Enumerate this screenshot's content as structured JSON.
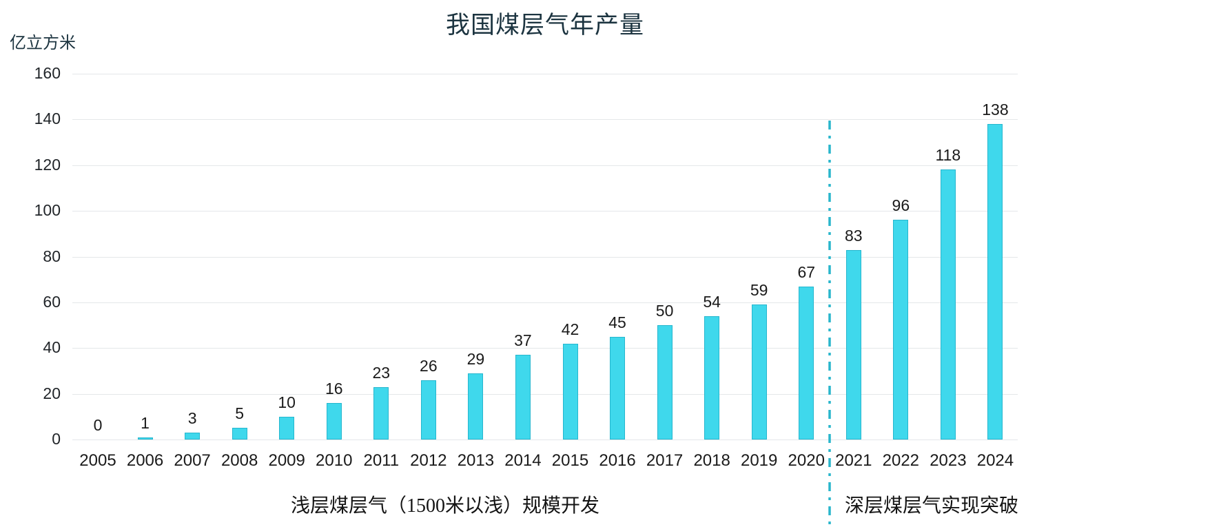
{
  "chart_data": {
    "type": "bar",
    "title": "我国煤层气年产量",
    "ylabel": "亿立方米",
    "xlabel": "",
    "categories": [
      "2005",
      "2006",
      "2007",
      "2008",
      "2009",
      "2010",
      "2011",
      "2012",
      "2013",
      "2014",
      "2015",
      "2016",
      "2017",
      "2018",
      "2019",
      "2020",
      "2021",
      "2022",
      "2023",
      "2024"
    ],
    "values": [
      0,
      1,
      3,
      5,
      10,
      16,
      23,
      26,
      29,
      37,
      42,
      45,
      50,
      54,
      59,
      67,
      83,
      96,
      118,
      138
    ],
    "ylim": [
      0,
      160
    ],
    "ytick_step": 20,
    "grid": "horizontal",
    "legend": "none",
    "data_labels": "above-bars",
    "divider": {
      "between": [
        "2020",
        "2021"
      ],
      "style": "dash-dot-vertical",
      "color": "#29b6cc"
    },
    "annotations": [
      {
        "text": "浅层煤层气（1500米以浅）规模开发",
        "applies_to": "2005-2020",
        "position": "below-axis-left"
      },
      {
        "text": "深层煤层气实现突破",
        "applies_to": "2021-2024",
        "position": "below-axis-right"
      }
    ]
  },
  "colors": {
    "bar_fill": "#3fd8ec",
    "bar_border": "#25b6ce",
    "divider": "#29b6cc",
    "gridline": "#e4e7e9",
    "title_text": "#1c3440",
    "label_text": "#1a1a1a"
  }
}
